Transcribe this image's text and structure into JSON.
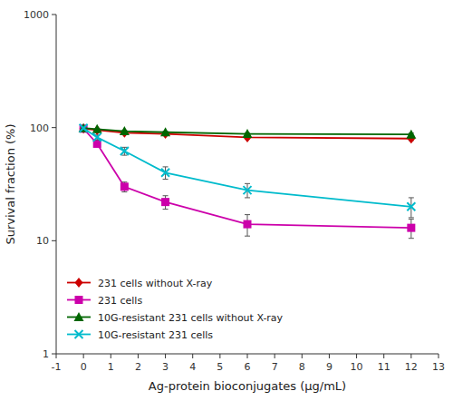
{
  "chart_data": {
    "type": "line",
    "xlabel": "Ag-protein bioconjugates (μg/mL)",
    "ylabel": "Survival fraction (%)",
    "log": "y",
    "grid": false,
    "legend": "lower left",
    "xlim": [
      -1,
      13
    ],
    "xticks": [
      -1,
      0,
      1,
      2,
      3,
      4,
      5,
      6,
      7,
      8,
      9,
      10,
      11,
      12,
      13
    ],
    "ylim": [
      1,
      1000
    ],
    "yticks": [
      1,
      10,
      100,
      1000
    ],
    "x": [
      0,
      0.5,
      1.5,
      3,
      6,
      12
    ],
    "series": [
      {
        "name": "231 cells without X-ray",
        "color": "#cc0000",
        "marker": "diamond",
        "line_style": "solid",
        "values": [
          98,
          95,
          90,
          88,
          82,
          80
        ],
        "errors": [
          1.5,
          2,
          2.5,
          3,
          2.5,
          3
        ]
      },
      {
        "name": "231 cells",
        "color": "#cc00aa",
        "marker": "square",
        "line_style": "solid",
        "values": [
          98,
          72,
          30,
          22,
          14,
          13
        ],
        "errors": [
          1.5,
          4,
          3,
          3,
          3,
          2.5
        ]
      },
      {
        "name": "10G-resistant 231 cells without X-ray",
        "color": "#006600",
        "marker": "triangle",
        "line_style": "solid",
        "values": [
          99,
          97,
          93,
          91,
          88,
          87
        ],
        "errors": [
          1,
          1.5,
          2,
          2,
          2,
          2.5
        ]
      },
      {
        "name": "10G-resistant 231 cells",
        "color": "#00bbcc",
        "marker": "x",
        "line_style": "solid",
        "values": [
          99,
          82,
          62,
          40,
          28,
          20
        ],
        "errors": [
          1.5,
          4,
          5,
          5,
          4,
          4
        ]
      }
    ]
  }
}
